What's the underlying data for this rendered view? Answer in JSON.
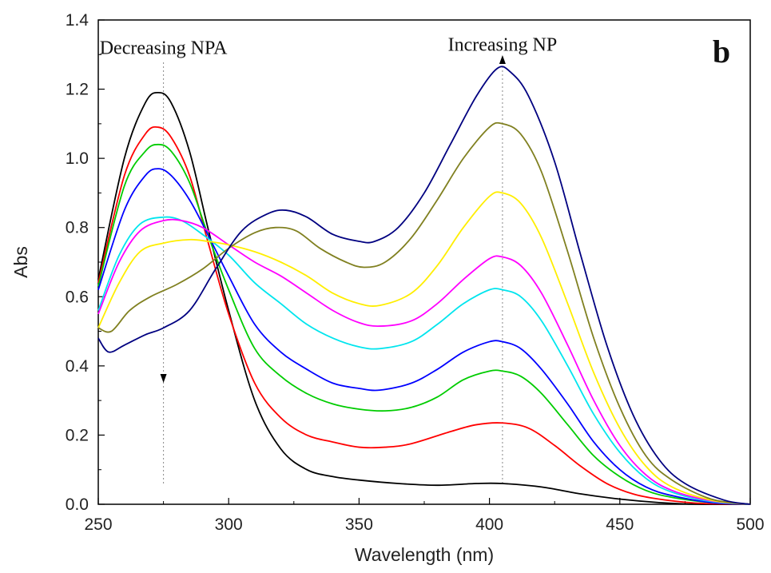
{
  "chart_data": {
    "type": "line",
    "title": "",
    "xlabel": "Wavelength (nm)",
    "ylabel": "Abs",
    "xlim": [
      250,
      500
    ],
    "ylim": [
      0.0,
      1.4
    ],
    "grid": false,
    "legend": "none",
    "xticks": [
      "250",
      "300",
      "350",
      "400",
      "450",
      "500"
    ],
    "yticks": [
      "0.0",
      "0.2",
      "0.4",
      "0.6",
      "0.8",
      "1.0",
      "1.2",
      "1.4"
    ],
    "panel_label": "b",
    "annotations": [
      {
        "text": "Decreasing NPA",
        "x": 275,
        "y": 1.32,
        "arrow": "down"
      },
      {
        "text": "Increasing NP",
        "x": 405,
        "y": 1.33,
        "arrow": "up"
      }
    ],
    "reference_lines": [
      275,
      405
    ],
    "series": [
      {
        "color": "#000000",
        "points": [
          [
            250,
            0.65
          ],
          [
            260,
            1.0
          ],
          [
            268,
            1.16
          ],
          [
            273,
            1.19
          ],
          [
            278,
            1.16
          ],
          [
            285,
            1.02
          ],
          [
            292,
            0.8
          ],
          [
            300,
            0.56
          ],
          [
            310,
            0.3
          ],
          [
            320,
            0.16
          ],
          [
            330,
            0.1
          ],
          [
            340,
            0.08
          ],
          [
            350,
            0.07
          ],
          [
            365,
            0.06
          ],
          [
            380,
            0.055
          ],
          [
            395,
            0.06
          ],
          [
            405,
            0.06
          ],
          [
            420,
            0.05
          ],
          [
            435,
            0.03
          ],
          [
            450,
            0.015
          ],
          [
            465,
            0.005
          ],
          [
            480,
            0.0
          ],
          [
            500,
            0.0
          ]
        ]
      },
      {
        "color": "#ff0000",
        "points": [
          [
            250,
            0.64
          ],
          [
            260,
            0.95
          ],
          [
            268,
            1.07
          ],
          [
            273,
            1.09
          ],
          [
            278,
            1.06
          ],
          [
            285,
            0.95
          ],
          [
            292,
            0.76
          ],
          [
            300,
            0.55
          ],
          [
            310,
            0.35
          ],
          [
            320,
            0.25
          ],
          [
            330,
            0.2
          ],
          [
            340,
            0.18
          ],
          [
            350,
            0.165
          ],
          [
            360,
            0.165
          ],
          [
            370,
            0.175
          ],
          [
            385,
            0.21
          ],
          [
            395,
            0.23
          ],
          [
            405,
            0.235
          ],
          [
            415,
            0.22
          ],
          [
            425,
            0.17
          ],
          [
            435,
            0.11
          ],
          [
            445,
            0.06
          ],
          [
            455,
            0.03
          ],
          [
            465,
            0.015
          ],
          [
            480,
            0.003
          ],
          [
            500,
            0.0
          ]
        ]
      },
      {
        "color": "#00cc00",
        "points": [
          [
            250,
            0.63
          ],
          [
            260,
            0.92
          ],
          [
            268,
            1.02
          ],
          [
            273,
            1.04
          ],
          [
            278,
            1.02
          ],
          [
            285,
            0.93
          ],
          [
            292,
            0.78
          ],
          [
            300,
            0.62
          ],
          [
            310,
            0.45
          ],
          [
            320,
            0.37
          ],
          [
            330,
            0.32
          ],
          [
            340,
            0.29
          ],
          [
            350,
            0.275
          ],
          [
            360,
            0.27
          ],
          [
            370,
            0.28
          ],
          [
            380,
            0.31
          ],
          [
            390,
            0.36
          ],
          [
            400,
            0.385
          ],
          [
            405,
            0.385
          ],
          [
            412,
            0.37
          ],
          [
            420,
            0.32
          ],
          [
            430,
            0.23
          ],
          [
            440,
            0.14
          ],
          [
            450,
            0.08
          ],
          [
            460,
            0.04
          ],
          [
            470,
            0.02
          ],
          [
            485,
            0.005
          ],
          [
            500,
            0.0
          ]
        ]
      },
      {
        "color": "#0000ff",
        "points": [
          [
            250,
            0.62
          ],
          [
            260,
            0.85
          ],
          [
            268,
            0.95
          ],
          [
            273,
            0.97
          ],
          [
            278,
            0.95
          ],
          [
            285,
            0.88
          ],
          [
            292,
            0.78
          ],
          [
            300,
            0.66
          ],
          [
            310,
            0.52
          ],
          [
            320,
            0.44
          ],
          [
            330,
            0.39
          ],
          [
            340,
            0.35
          ],
          [
            350,
            0.335
          ],
          [
            358,
            0.33
          ],
          [
            370,
            0.35
          ],
          [
            380,
            0.39
          ],
          [
            390,
            0.44
          ],
          [
            400,
            0.47
          ],
          [
            405,
            0.47
          ],
          [
            412,
            0.45
          ],
          [
            420,
            0.39
          ],
          [
            430,
            0.29
          ],
          [
            440,
            0.18
          ],
          [
            450,
            0.1
          ],
          [
            460,
            0.05
          ],
          [
            470,
            0.025
          ],
          [
            485,
            0.005
          ],
          [
            500,
            0.0
          ]
        ]
      },
      {
        "color": "#00e5ee",
        "points": [
          [
            250,
            0.56
          ],
          [
            258,
            0.72
          ],
          [
            266,
            0.81
          ],
          [
            275,
            0.83
          ],
          [
            282,
            0.82
          ],
          [
            290,
            0.78
          ],
          [
            300,
            0.72
          ],
          [
            310,
            0.64
          ],
          [
            320,
            0.58
          ],
          [
            330,
            0.52
          ],
          [
            340,
            0.48
          ],
          [
            350,
            0.455
          ],
          [
            358,
            0.45
          ],
          [
            370,
            0.47
          ],
          [
            380,
            0.52
          ],
          [
            390,
            0.58
          ],
          [
            400,
            0.62
          ],
          [
            405,
            0.62
          ],
          [
            412,
            0.6
          ],
          [
            420,
            0.53
          ],
          [
            430,
            0.4
          ],
          [
            440,
            0.26
          ],
          [
            450,
            0.15
          ],
          [
            460,
            0.075
          ],
          [
            470,
            0.035
          ],
          [
            485,
            0.008
          ],
          [
            500,
            0.0
          ]
        ]
      },
      {
        "color": "#ff00ff",
        "points": [
          [
            250,
            0.55
          ],
          [
            258,
            0.7
          ],
          [
            266,
            0.79
          ],
          [
            275,
            0.82
          ],
          [
            282,
            0.82
          ],
          [
            290,
            0.8
          ],
          [
            300,
            0.75
          ],
          [
            310,
            0.7
          ],
          [
            320,
            0.66
          ],
          [
            330,
            0.61
          ],
          [
            340,
            0.56
          ],
          [
            350,
            0.525
          ],
          [
            358,
            0.515
          ],
          [
            370,
            0.53
          ],
          [
            380,
            0.58
          ],
          [
            390,
            0.65
          ],
          [
            400,
            0.71
          ],
          [
            405,
            0.715
          ],
          [
            412,
            0.69
          ],
          [
            420,
            0.61
          ],
          [
            430,
            0.46
          ],
          [
            440,
            0.3
          ],
          [
            450,
            0.17
          ],
          [
            460,
            0.085
          ],
          [
            470,
            0.04
          ],
          [
            485,
            0.01
          ],
          [
            500,
            0.0
          ]
        ]
      },
      {
        "color": "#ffee00",
        "points": [
          [
            250,
            0.51
          ],
          [
            258,
            0.64
          ],
          [
            266,
            0.73
          ],
          [
            275,
            0.755
          ],
          [
            285,
            0.765
          ],
          [
            292,
            0.76
          ],
          [
            300,
            0.75
          ],
          [
            310,
            0.73
          ],
          [
            320,
            0.7
          ],
          [
            330,
            0.66
          ],
          [
            340,
            0.61
          ],
          [
            350,
            0.58
          ],
          [
            358,
            0.575
          ],
          [
            370,
            0.61
          ],
          [
            380,
            0.69
          ],
          [
            390,
            0.8
          ],
          [
            400,
            0.89
          ],
          [
            405,
            0.9
          ],
          [
            412,
            0.87
          ],
          [
            420,
            0.77
          ],
          [
            430,
            0.58
          ],
          [
            440,
            0.38
          ],
          [
            450,
            0.22
          ],
          [
            460,
            0.11
          ],
          [
            470,
            0.05
          ],
          [
            485,
            0.012
          ],
          [
            500,
            0.0
          ]
        ]
      },
      {
        "color": "#808020",
        "points": [
          [
            250,
            0.51
          ],
          [
            255,
            0.5
          ],
          [
            262,
            0.56
          ],
          [
            270,
            0.6
          ],
          [
            280,
            0.635
          ],
          [
            290,
            0.68
          ],
          [
            300,
            0.74
          ],
          [
            310,
            0.785
          ],
          [
            318,
            0.8
          ],
          [
            326,
            0.79
          ],
          [
            335,
            0.74
          ],
          [
            345,
            0.7
          ],
          [
            352,
            0.685
          ],
          [
            360,
            0.7
          ],
          [
            370,
            0.77
          ],
          [
            380,
            0.88
          ],
          [
            390,
            1.0
          ],
          [
            400,
            1.09
          ],
          [
            405,
            1.1
          ],
          [
            412,
            1.07
          ],
          [
            420,
            0.96
          ],
          [
            430,
            0.73
          ],
          [
            440,
            0.48
          ],
          [
            450,
            0.28
          ],
          [
            460,
            0.14
          ],
          [
            470,
            0.07
          ],
          [
            485,
            0.015
          ],
          [
            500,
            0.0
          ]
        ]
      },
      {
        "color": "#000080",
        "points": [
          [
            250,
            0.48
          ],
          [
            254,
            0.44
          ],
          [
            260,
            0.46
          ],
          [
            268,
            0.49
          ],
          [
            275,
            0.51
          ],
          [
            285,
            0.56
          ],
          [
            295,
            0.68
          ],
          [
            305,
            0.79
          ],
          [
            315,
            0.84
          ],
          [
            322,
            0.85
          ],
          [
            330,
            0.83
          ],
          [
            340,
            0.78
          ],
          [
            350,
            0.76
          ],
          [
            356,
            0.76
          ],
          [
            365,
            0.8
          ],
          [
            375,
            0.9
          ],
          [
            385,
            1.04
          ],
          [
            395,
            1.18
          ],
          [
            403,
            1.26
          ],
          [
            408,
            1.25
          ],
          [
            415,
            1.18
          ],
          [
            425,
            0.99
          ],
          [
            435,
            0.72
          ],
          [
            445,
            0.46
          ],
          [
            455,
            0.26
          ],
          [
            465,
            0.13
          ],
          [
            475,
            0.06
          ],
          [
            490,
            0.012
          ],
          [
            500,
            0.0
          ]
        ]
      }
    ]
  }
}
